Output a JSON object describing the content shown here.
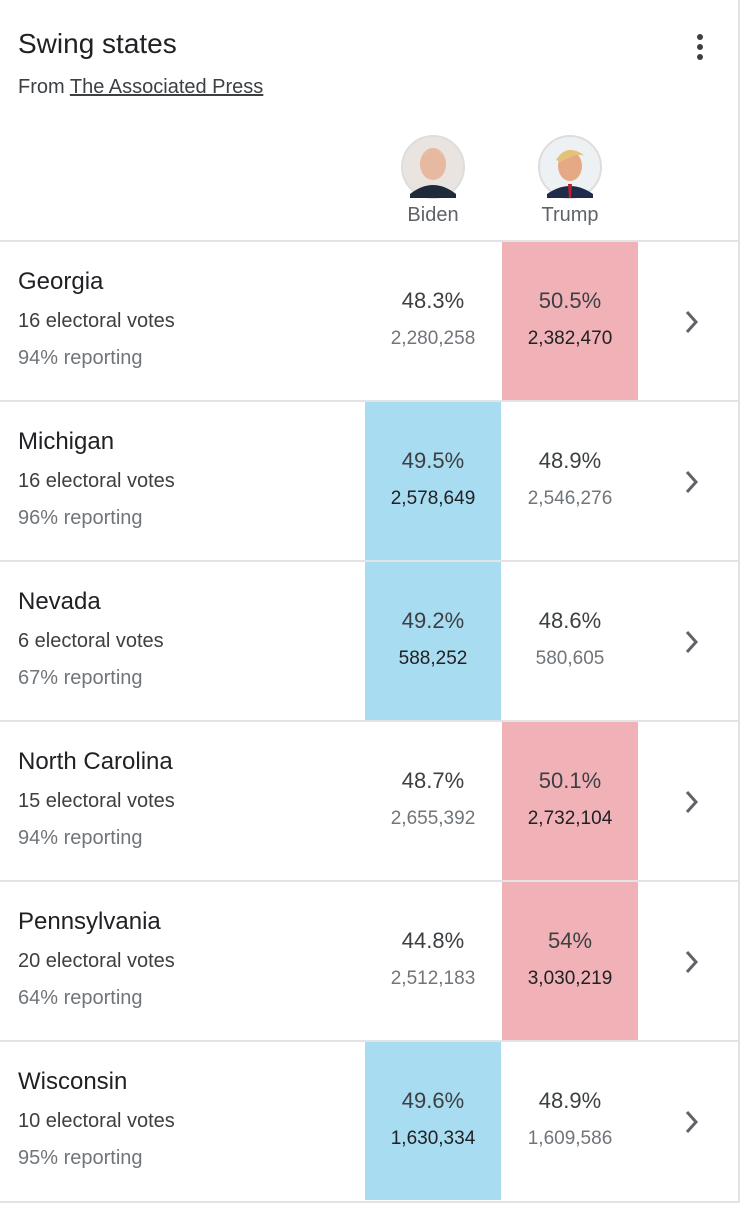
{
  "header": {
    "title": "Swing states",
    "source_prefix": "From",
    "source": "The Associated Press"
  },
  "candidates": [
    {
      "name": "Biden",
      "color": "#a8dcf0"
    },
    {
      "name": "Trump",
      "color": "#f0b1b7"
    }
  ],
  "rows": [
    {
      "state": "Georgia",
      "electoral": "16 electoral votes",
      "reporting": "94% reporting",
      "results": [
        {
          "pct": "48.3%",
          "votes": "2,280,258"
        },
        {
          "pct": "50.5%",
          "votes": "2,382,470"
        }
      ],
      "leader": 1
    },
    {
      "state": "Michigan",
      "electoral": "16 electoral votes",
      "reporting": "96% reporting",
      "results": [
        {
          "pct": "49.5%",
          "votes": "2,578,649"
        },
        {
          "pct": "48.9%",
          "votes": "2,546,276"
        }
      ],
      "leader": 0
    },
    {
      "state": "Nevada",
      "electoral": "6 electoral votes",
      "reporting": "67% reporting",
      "results": [
        {
          "pct": "49.2%",
          "votes": "588,252"
        },
        {
          "pct": "48.6%",
          "votes": "580,605"
        }
      ],
      "leader": 0
    },
    {
      "state": "North Carolina",
      "electoral": "15 electoral votes",
      "reporting": "94% reporting",
      "results": [
        {
          "pct": "48.7%",
          "votes": "2,655,392"
        },
        {
          "pct": "50.1%",
          "votes": "2,732,104"
        }
      ],
      "leader": 1
    },
    {
      "state": "Pennsylvania",
      "electoral": "20 electoral votes",
      "reporting": "64% reporting",
      "results": [
        {
          "pct": "44.8%",
          "votes": "2,512,183"
        },
        {
          "pct": "54%",
          "votes": "3,030,219"
        }
      ],
      "leader": 1
    },
    {
      "state": "Wisconsin",
      "electoral": "10 electoral votes",
      "reporting": "95% reporting",
      "results": [
        {
          "pct": "49.6%",
          "votes": "1,630,334"
        },
        {
          "pct": "48.9%",
          "votes": "1,609,586"
        }
      ],
      "leader": 0
    }
  ]
}
